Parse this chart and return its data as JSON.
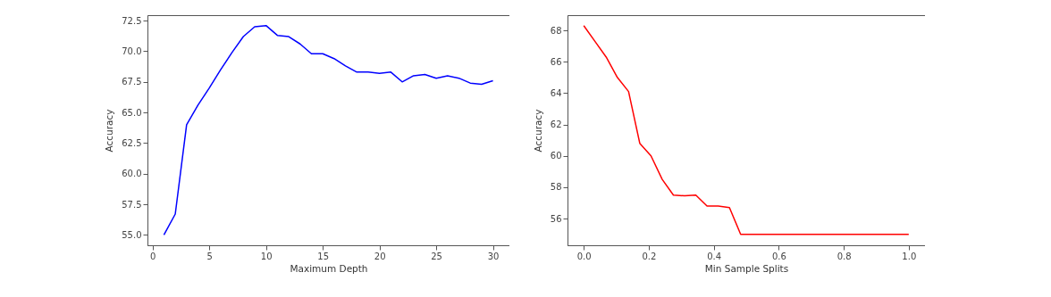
{
  "chart_data": [
    {
      "type": "line",
      "xlabel": "Maximum Depth",
      "ylabel": "Accuracy",
      "grid": false,
      "x": [
        1,
        2,
        3,
        4,
        5,
        6,
        7,
        8,
        9,
        10,
        11,
        12,
        13,
        14,
        15,
        16,
        17,
        18,
        19,
        20,
        21,
        22,
        23,
        24,
        25,
        26,
        27,
        28,
        29,
        30
      ],
      "series": [
        {
          "color": "#0000ff",
          "values": [
            55.0,
            56.7,
            64.0,
            65.6,
            67.0,
            68.5,
            69.9,
            71.2,
            72.0,
            72.1,
            71.3,
            71.2,
            70.6,
            69.8,
            69.8,
            69.4,
            68.8,
            68.3,
            68.3,
            68.2,
            68.3,
            67.5,
            68.0,
            68.1,
            67.8,
            68.0,
            67.8,
            67.4,
            67.3,
            67.6
          ]
        }
      ],
      "xlim": [
        -0.45,
        31.45
      ],
      "ylim": [
        54.15,
        72.95
      ],
      "xticks": [
        0,
        5,
        10,
        15,
        20,
        25,
        30
      ],
      "yticks": [
        {
          "value": 55,
          "label": "55.0"
        },
        57.5,
        {
          "value": 60,
          "label": "60.0"
        },
        62.5,
        {
          "value": 65,
          "label": "65.0"
        },
        67.5,
        {
          "value": 70,
          "label": "70.0"
        },
        72.5
      ]
    },
    {
      "type": "line",
      "xlabel": "Min Sample Splits",
      "ylabel": "Accuracy",
      "grid": false,
      "x": [
        0,
        0.0345,
        0.069,
        0.1034,
        0.1379,
        0.1724,
        0.2069,
        0.2414,
        0.2759,
        0.3103,
        0.3448,
        0.3793,
        0.4138,
        0.4483,
        0.4828,
        0.5172,
        0.5517,
        0.5862,
        0.6207,
        0.6552,
        0.6897,
        0.7241,
        0.7586,
        0.7931,
        0.8276,
        0.8621,
        0.8966,
        0.931,
        0.9655,
        1
      ],
      "series": [
        {
          "color": "#ff0000",
          "values": [
            68.3,
            67.3,
            66.3,
            65.0,
            64.1,
            60.8,
            60.0,
            58.5,
            57.5,
            57.45,
            57.5,
            56.8,
            56.8,
            56.7,
            55.0,
            55.0,
            55.0,
            55.0,
            55.0,
            55.0,
            55.0,
            55.0,
            55.0,
            55.0,
            55.0,
            55.0,
            55.0,
            55.0,
            55.0,
            55.0
          ]
        }
      ],
      "xlim": [
        -0.05,
        1.05
      ],
      "ylim": [
        54.3,
        68.97
      ],
      "xticks": [
        {
          "value": 0,
          "label": "0.0"
        },
        0.2,
        0.4,
        0.6,
        0.8,
        {
          "value": 1,
          "label": "1.0"
        }
      ],
      "yticks": [
        56,
        58,
        60,
        62,
        64,
        66,
        68
      ]
    }
  ]
}
